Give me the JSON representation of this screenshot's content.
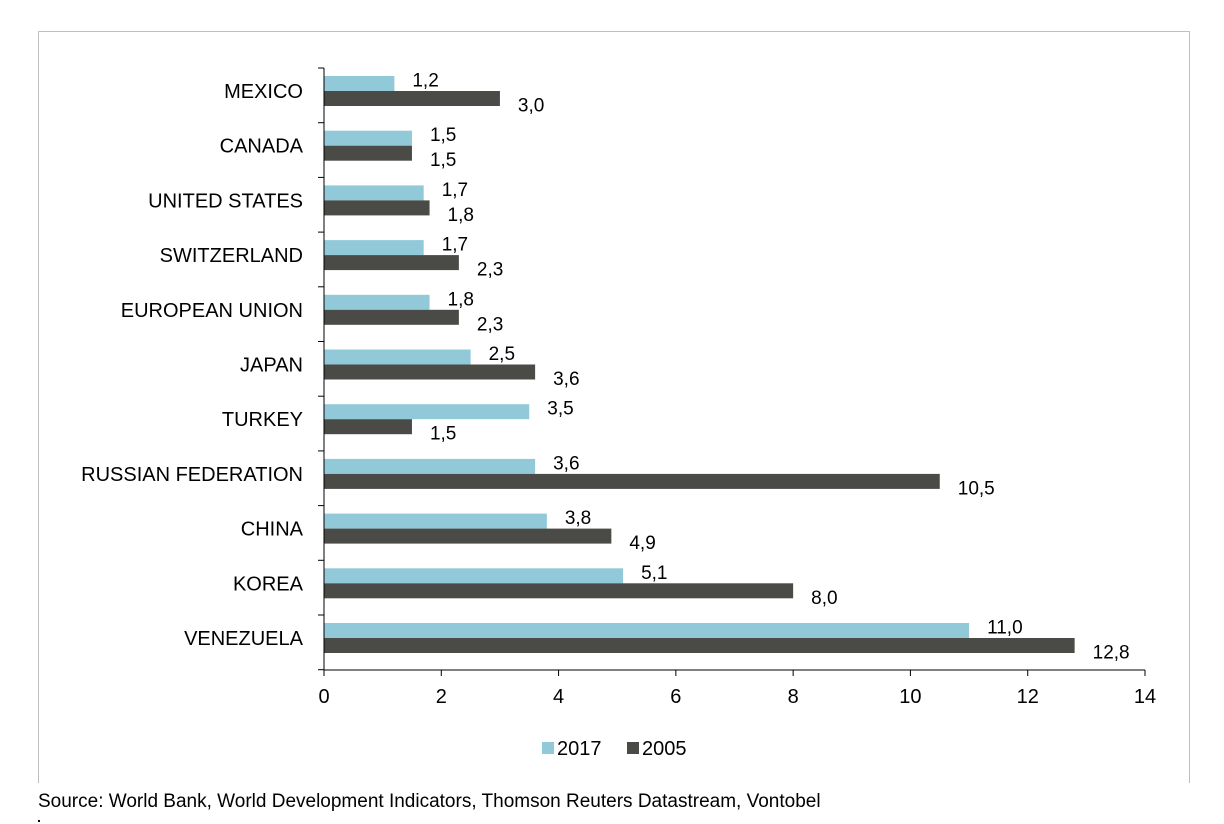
{
  "source_note": "Source: World Bank, World Development Indicators, Thomson Reuters Datastream, Vontobel",
  "colors": {
    "series_2017": "#92c9d8",
    "series_2005": "#4a4a46",
    "axis": "#000000",
    "frame": "#bfbfbf"
  },
  "chart_data": {
    "type": "bar",
    "orientation": "horizontal",
    "title": "",
    "xlabel": "",
    "ylabel": "",
    "categories": [
      "MEXICO",
      "CANADA",
      "UNITED STATES",
      "SWITZERLAND",
      "EUROPEAN UNION",
      "JAPAN",
      "TURKEY",
      "RUSSIAN FEDERATION",
      "CHINA",
      "KOREA",
      "VENEZUELA"
    ],
    "series": [
      {
        "name": "2017",
        "values": [
          1.2,
          1.5,
          1.7,
          1.7,
          1.8,
          2.5,
          3.5,
          3.6,
          3.8,
          5.1,
          11.0
        ],
        "labels": [
          "1,2",
          "1,5",
          "1,7",
          "1,7",
          "1,8",
          "2,5",
          "3,5",
          "3,6",
          "3,8",
          "5,1",
          "11,0"
        ]
      },
      {
        "name": "2005",
        "values": [
          3.0,
          1.5,
          1.8,
          2.3,
          2.3,
          3.6,
          1.5,
          10.5,
          4.9,
          8.0,
          12.8
        ],
        "labels": [
          "3,0",
          "1,5",
          "1,8",
          "2,3",
          "2,3",
          "3,6",
          "1,5",
          "10,5",
          "4,9",
          "8,0",
          "12,8"
        ]
      }
    ],
    "xlim": [
      0,
      14
    ],
    "xticks": [
      "0",
      "2",
      "4",
      "6",
      "8",
      "10",
      "12",
      "14"
    ],
    "grid": false,
    "legend_position": "bottom"
  }
}
